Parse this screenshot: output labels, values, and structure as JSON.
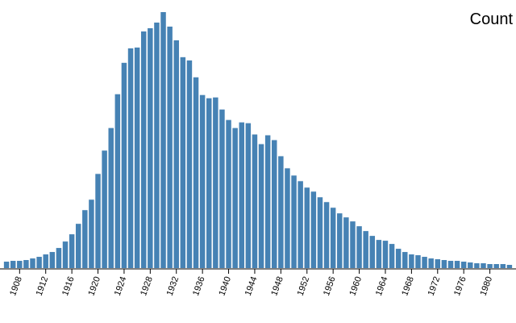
{
  "chart_data": {
    "type": "bar",
    "title": "Count",
    "color": "#4682b4",
    "x": [
      1906,
      1907,
      1908,
      1909,
      1910,
      1911,
      1912,
      1913,
      1914,
      1915,
      1916,
      1917,
      1918,
      1919,
      1920,
      1921,
      1922,
      1923,
      1924,
      1925,
      1926,
      1927,
      1928,
      1929,
      1930,
      1931,
      1932,
      1933,
      1934,
      1935,
      1936,
      1937,
      1938,
      1939,
      1940,
      1941,
      1942,
      1943,
      1944,
      1945,
      1946,
      1947,
      1948,
      1949,
      1950,
      1951,
      1952,
      1953,
      1954,
      1955,
      1956,
      1957,
      1958,
      1959,
      1960,
      1961,
      1962,
      1963,
      1964,
      1965,
      1966,
      1967,
      1968,
      1969,
      1970,
      1971,
      1972,
      1973,
      1974,
      1975,
      1976,
      1977,
      1978,
      1979,
      1980,
      1981,
      1982,
      1983
    ],
    "values": [
      8,
      9,
      9,
      10,
      12,
      14,
      17,
      20,
      25,
      33,
      42,
      55,
      72,
      85,
      117,
      146,
      174,
      216,
      255,
      273,
      274,
      294,
      298,
      305,
      318,
      300,
      283,
      262,
      258,
      237,
      215,
      211,
      212,
      197,
      184,
      174,
      181,
      180,
      166,
      154,
      165,
      159,
      139,
      124,
      115,
      108,
      100,
      95,
      88,
      82,
      75,
      68,
      63,
      58,
      52,
      46,
      40,
      35,
      34,
      30,
      24,
      20,
      17,
      16,
      14,
      12,
      11,
      10,
      9,
      9,
      8,
      7,
      6,
      6,
      5,
      5,
      5,
      4
    ],
    "xlim": [
      1905,
      1984
    ],
    "xticks": [
      1908,
      1912,
      1916,
      1920,
      1924,
      1928,
      1932,
      1936,
      1940,
      1944,
      1948,
      1952,
      1956,
      1960,
      1964,
      1968,
      1972,
      1976,
      1980
    ],
    "ylim": [
      0,
      320
    ]
  }
}
